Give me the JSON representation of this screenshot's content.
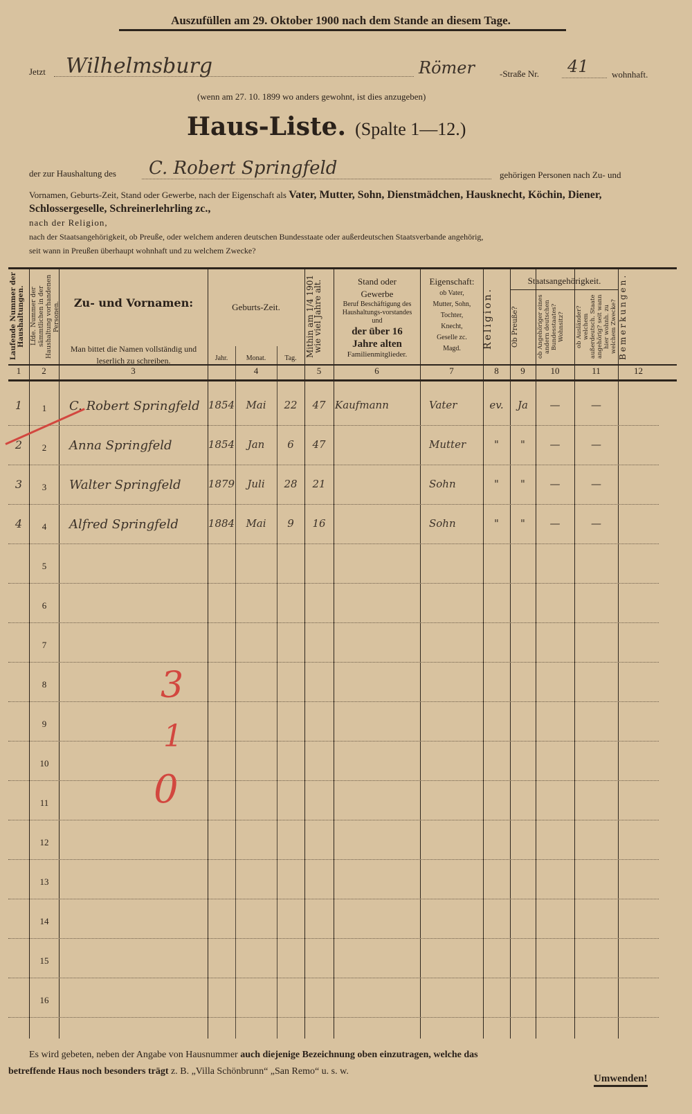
{
  "header": {
    "instruction": "Auszufüllen am 29. Oktober 1900 nach dem Stande an diesem Tage.",
    "jetzt_label": "Jetzt",
    "place": "Wilhelmsburg",
    "street": "Römer",
    "street_label": "-Straße Nr.",
    "house_number": "41",
    "resident_label": "wohnhaft.",
    "previous_note": "(wenn am 27. 10. 1899 wo anders gewohnt, ist dies anzugeben)",
    "title": "Haus-Liste.",
    "title_sub": "(Spalte 1—12.)",
    "household_prefix": "der zur Haushaltung des",
    "household_head": "C. Robert Springfeld",
    "household_suffix": "gehörigen Personen nach Zu- und",
    "para1_plain": "Vornamen, Geburts-Zeit, Stand oder Gewerbe, nach der Eigenschaft als",
    "para1_bold": "Vater, Mutter, Sohn, Dienstmädchen, Hausknecht, Köchin, Diener, Schlossergeselle, Schreinerlehrling zc.,",
    "para2": "nach der Religion,",
    "para3": "nach der Staatsangehörigkeit, ob Preuße, oder welchem anderen deutschen Bundesstaate oder außerdeutschen Staatsverbande angehörig,",
    "para4": "seit wann in Preußen überhaupt wohnhaft und zu welchem Zwecke?"
  },
  "table": {
    "headers": {
      "c1": "Laufende Nummer der Haushaltungen.",
      "c2": "Lfde. Nummer der sämmtlichen in der Haushaltung vorhandenen Personen.",
      "c3_title": "Zu- und Vornamen:",
      "c3_note": "Man bittet die Namen vollständig und leserlich zu schreiben.",
      "c4_title": "Geburts-Zeit.",
      "c4_year": "Jahr.",
      "c4_month": "Monat.",
      "c4_day": "Tag.",
      "c5": "Mithin am 1/4 1901 wie viel Jahre alt.",
      "c6_title": "Stand oder Gewerbe",
      "c6_note": "Beruf Beschäftigung des Haushaltungs-vorstandes und",
      "c6_bold": "der über 16 Jahre alten",
      "c6_end": "Familienmitglieder.",
      "c7_title": "Eigenschaft:",
      "c7_note": "ob Vater, Mutter, Sohn, Tochter, Knecht, Geselle zc. Magd.",
      "c8": "Religion.",
      "c9_11_title": "Staatsangehörigkeit.",
      "c9": "Ob Preuße?",
      "c10": "ob Angehöriger eines andern deutschen Bundesstaates? Wohnsitz?",
      "c11": "ob Ausländer? welchem außerdeutsch. Staate angehörig? seit wann hier wohnh. zu welchem Zwecke?",
      "c12": "Bemerkungen."
    },
    "column_numbers": [
      "1",
      "2",
      "3",
      "4",
      "5",
      "6",
      "7",
      "8",
      "9",
      "10",
      "11",
      "12"
    ],
    "rows": [
      {
        "household": "1",
        "num": "1",
        "name": "C. Robert Springfeld",
        "year": "1854",
        "month": "Mai",
        "day": "22",
        "age": "47",
        "occupation": "Kaufmann",
        "role": "Vater",
        "religion": "ev.",
        "prussian": "Ja",
        "other_state": "—",
        "foreign": "—"
      },
      {
        "household": "2",
        "num": "2",
        "name": "Anna Springfeld",
        "year": "1854",
        "month": "Jan",
        "day": "6",
        "age": "47",
        "occupation": "",
        "role": "Mutter",
        "religion": "\"",
        "prussian": "\"",
        "other_state": "—",
        "foreign": "—"
      },
      {
        "household": "3",
        "num": "3",
        "name": "Walter Springfeld",
        "year": "1879",
        "month": "Juli",
        "day": "28",
        "age": "21",
        "occupation": "",
        "role": "Sohn",
        "religion": "\"",
        "prussian": "\"",
        "other_state": "—",
        "foreign": "—"
      },
      {
        "household": "4",
        "num": "4",
        "name": "Alfred Springfeld",
        "year": "1884",
        "month": "Mai",
        "day": "9",
        "age": "16",
        "occupation": "",
        "role": "Sohn",
        "religion": "\"",
        "prussian": "\"",
        "other_state": "—",
        "foreign": "—"
      }
    ],
    "empty_row_numbers": [
      "5",
      "6",
      "7",
      "8",
      "9",
      "10",
      "11",
      "12",
      "13",
      "14",
      "15",
      "16"
    ]
  },
  "annotations": {
    "red_marks": [
      "3",
      "1",
      "0"
    ],
    "red_color": "#d2473f"
  },
  "footer": {
    "line1_plain": "Es wird gebeten, neben der Angabe von Hausnummer",
    "line1_bold": "auch diejenige Bezeichnung oben einzutragen, welche das",
    "line2_bold": "betreffende Haus noch besonders trägt",
    "line2_plain": "z. B. „Villa Schönbrunn“ „San Remo“ u. s. w.",
    "turn_over": "Umwenden!"
  }
}
